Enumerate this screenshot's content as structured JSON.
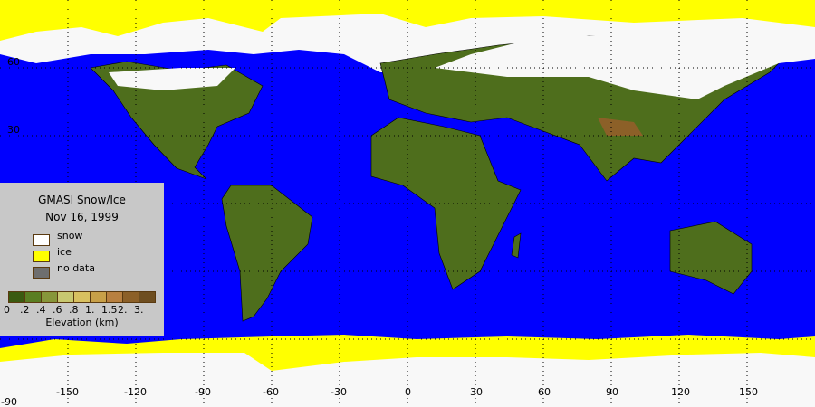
{
  "legend": {
    "title": "GMASI Snow/Ice",
    "date": "Nov 16, 1999",
    "items": [
      {
        "label": "snow",
        "color": "#ffffff"
      },
      {
        "label": "ice",
        "color": "#ffff00"
      },
      {
        "label": "no data",
        "color": "#6e6e6e"
      }
    ],
    "colorbar": {
      "colors": [
        "#3b5a10",
        "#5a7e22",
        "#87963a",
        "#c8c870",
        "#d8c060",
        "#c8a048",
        "#b88040",
        "#8c6028",
        "#6e4e20"
      ],
      "ticks": [
        "0",
        ".2",
        ".4",
        ".6",
        ".8",
        "1.",
        "1.5",
        "2.",
        "3."
      ],
      "label": "Elevation (km)"
    }
  },
  "axes": {
    "lon_labels": [
      "-150",
      "-120",
      "-90",
      "-60",
      "-30",
      "0",
      "30",
      "60",
      "90",
      "120",
      "150"
    ],
    "lat_labels": [
      "60",
      "30",
      "-90"
    ]
  },
  "colors": {
    "ocean": "#0000ff",
    "snow": "#f8f8f8",
    "ice": "#ffff00",
    "land": "#4e6e1c",
    "border": "#000000"
  }
}
